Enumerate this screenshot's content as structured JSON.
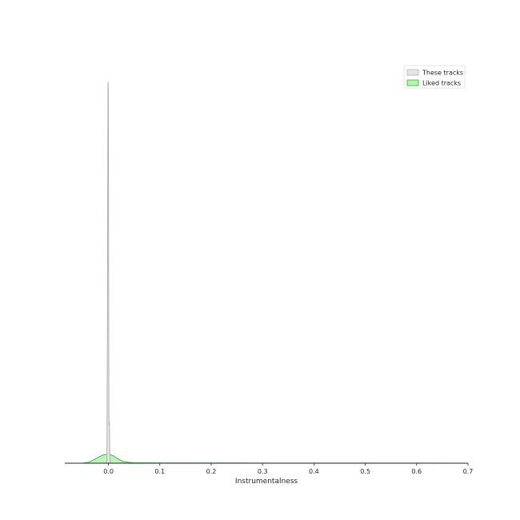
{
  "chart_data": {
    "type": "area",
    "title": "",
    "xlabel": "Instrumentalness",
    "ylabel": "",
    "xlim": [
      -0.085,
      0.7
    ],
    "ylim": [
      0,
      1
    ],
    "grid": false,
    "legend_placement": "top-right",
    "x_ticks": [
      0.0,
      0.1,
      0.2,
      0.3,
      0.4,
      0.5,
      0.6,
      0.7
    ],
    "x_tick_labels": [
      "0.0",
      "0.1",
      "0.2",
      "0.3",
      "0.4",
      "0.5",
      "0.6",
      "0.7"
    ],
    "series": [
      {
        "name": "These tracks",
        "color": "#b0b0b0",
        "fill": "#e6e6e6",
        "x": [
          -0.0035,
          -0.003,
          -0.002,
          -0.001,
          -0.0008,
          -0.0004,
          0.0,
          0.0004,
          0.0008,
          0.001,
          0.0015,
          0.002,
          0.0025,
          0.003,
          0.0035
        ],
        "y": [
          0.0,
          0.01,
          0.35,
          0.97,
          1.0,
          0.98,
          0.82,
          0.4,
          0.16,
          0.1,
          0.11,
          0.1,
          0.03,
          0.01,
          0.0
        ]
      },
      {
        "name": "Liked tracks",
        "color": "#33bb33",
        "fill": "#b8f0b8",
        "x": [
          -0.05,
          -0.04,
          -0.03,
          -0.02,
          -0.01,
          0.0,
          0.01,
          0.02,
          0.03,
          0.04,
          0.05,
          0.1,
          0.2,
          0.3,
          0.4,
          0.5,
          0.6,
          0.665
        ],
        "y": [
          0.0,
          0.002,
          0.008,
          0.015,
          0.022,
          0.024,
          0.019,
          0.01,
          0.004,
          0.002,
          0.001,
          0.0006,
          0.0004,
          0.0003,
          0.0003,
          0.0003,
          0.0003,
          0.0
        ]
      }
    ]
  }
}
